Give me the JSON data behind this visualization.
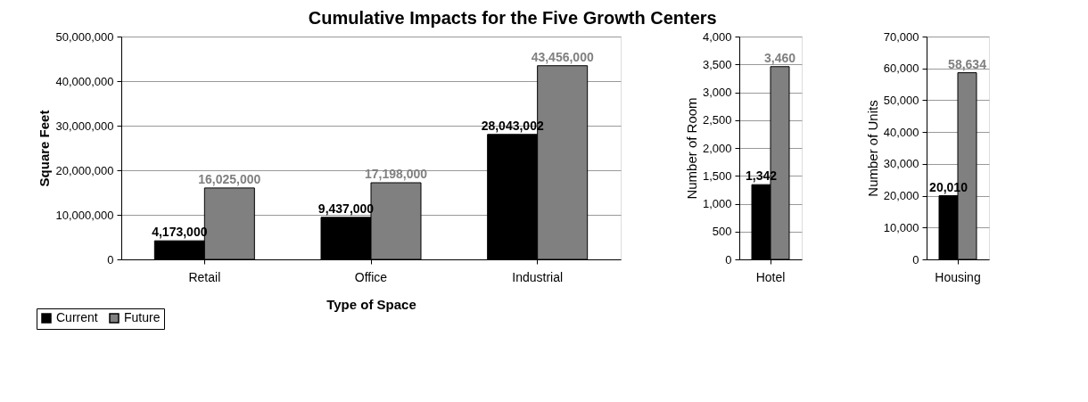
{
  "chart_data": [
    {
      "type": "bar",
      "title": "Cumulative Impacts for the Five Growth Centers",
      "xlabel": "Type of Space",
      "ylabel": "Square Feet",
      "categories": [
        "Retail",
        "Office",
        "Industrial"
      ],
      "series": [
        {
          "name": "Current",
          "color": "#000000",
          "values": [
            4173000,
            9437000,
            28043002
          ],
          "value_labels": [
            "4,173,000",
            "9,437,000",
            "28,043,002"
          ]
        },
        {
          "name": "Future",
          "color": "#808080",
          "values": [
            16025000,
            17198000,
            43456000
          ],
          "value_labels": [
            "16,025,000",
            "17,198,000",
            "43,456,000"
          ]
        }
      ],
      "ylim": [
        0,
        50000000
      ],
      "yticks": [
        {
          "value": 0,
          "label": "0"
        },
        {
          "value": 10000000,
          "label": "10,000,000"
        },
        {
          "value": 20000000,
          "label": "20,000,000"
        },
        {
          "value": 30000000,
          "label": "30,000,000"
        },
        {
          "value": 40000000,
          "label": "40,000,000"
        },
        {
          "value": 50000000,
          "label": "50,000,000"
        }
      ],
      "grid": "y",
      "legend": "bottom left"
    },
    {
      "type": "bar",
      "ylabel": "Number of Room",
      "categories": [
        "Hotel"
      ],
      "series": [
        {
          "color": "#000000",
          "values": [
            1342
          ],
          "value_labels": [
            "1,342"
          ]
        },
        {
          "color": "#808080",
          "values": [
            3460
          ],
          "value_labels": [
            "3,460"
          ]
        }
      ],
      "ylim": [
        0,
        4000
      ],
      "yticks": [
        {
          "value": 0,
          "label": "0"
        },
        {
          "value": 500,
          "label": "500"
        },
        {
          "value": 1000,
          "label": "1,000"
        },
        {
          "value": 1500,
          "label": "1,500"
        },
        {
          "value": 2000,
          "label": "2,000"
        },
        {
          "value": 2500,
          "label": "2,500"
        },
        {
          "value": 3000,
          "label": "3,000"
        },
        {
          "value": 3500,
          "label": "3,500"
        },
        {
          "value": 4000,
          "label": "4,000"
        }
      ],
      "grid": "y"
    },
    {
      "type": "bar",
      "ylabel": "Number of Units",
      "categories": [
        "Housing"
      ],
      "series": [
        {
          "color": "#000000",
          "values": [
            20010
          ],
          "value_labels": [
            "20,010"
          ]
        },
        {
          "color": "#808080",
          "values": [
            58634
          ],
          "value_labels": [
            "58,634"
          ]
        }
      ],
      "ylim": [
        0,
        70000
      ],
      "yticks": [
        {
          "value": 0,
          "label": "0"
        },
        {
          "value": 10000,
          "label": "10,000"
        },
        {
          "value": 20000,
          "label": "20,000"
        },
        {
          "value": 30000,
          "label": "30,000"
        },
        {
          "value": 40000,
          "label": "40,000"
        },
        {
          "value": 50000,
          "label": "50,000"
        },
        {
          "value": 60000,
          "label": "60,000"
        },
        {
          "value": 70000,
          "label": "70,000"
        }
      ],
      "grid": "y"
    }
  ]
}
